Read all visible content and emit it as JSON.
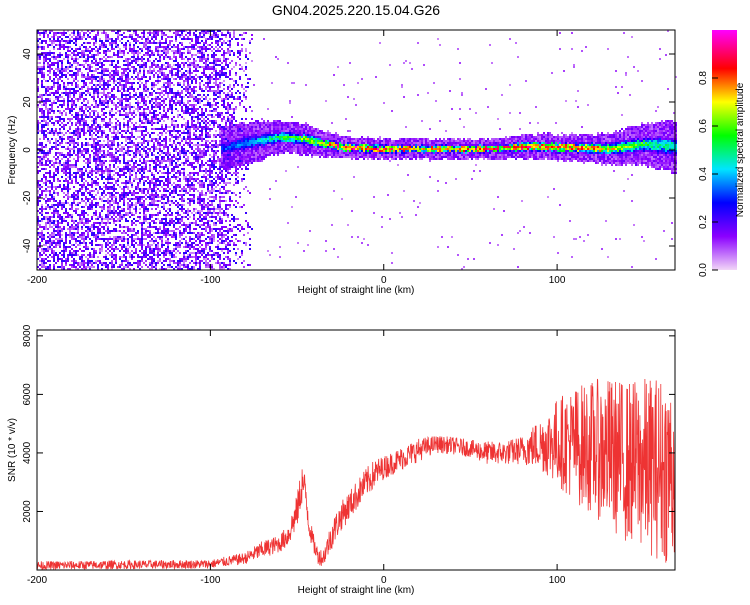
{
  "title": "GN04.2025.220.15.04.G26",
  "chart_data": [
    {
      "type": "heatmap",
      "xlabel": "Height of straight line (km)",
      "ylabel": "Frequency (Hz)",
      "xlim": [
        -200,
        168
      ],
      "ylim": [
        -50,
        50
      ],
      "xticks": [
        -200,
        -100,
        0,
        100
      ],
      "yticks": [
        -40,
        -20,
        0,
        20,
        40
      ],
      "grid": false,
      "colorbar": {
        "label": "Normalized spectral amplitude",
        "range": [
          0,
          1
        ],
        "ticks": [
          "0.0",
          "0.2",
          "0.4",
          "0.6",
          "0.8"
        ],
        "colors": [
          "#f2d6f7",
          "#8b00ff",
          "#0000ff",
          "#00e5ff",
          "#00ff00",
          "#ffff00",
          "#ff0000",
          "#ff00ff"
        ]
      },
      "noise_region": {
        "x_range": [
          -200,
          -75
        ],
        "amplitude": 0.25
      },
      "ridge": [
        {
          "x": -95,
          "freq": 0,
          "width": 4,
          "amplitude": 0.3
        },
        {
          "x": -75,
          "freq": 3,
          "width": 4,
          "amplitude": 0.4
        },
        {
          "x": -60,
          "freq": 5,
          "width": 3,
          "amplitude": 0.55
        },
        {
          "x": -45,
          "freq": 4,
          "width": 3,
          "amplitude": 0.65
        },
        {
          "x": -35,
          "freq": 2,
          "width": 2.5,
          "amplitude": 0.75
        },
        {
          "x": -20,
          "freq": 0.5,
          "width": 2,
          "amplitude": 0.95
        },
        {
          "x": 0,
          "freq": 0,
          "width": 2,
          "amplitude": 0.85
        },
        {
          "x": 20,
          "freq": 0,
          "width": 2,
          "amplitude": 0.8
        },
        {
          "x": 50,
          "freq": 0,
          "width": 2,
          "amplitude": 0.8
        },
        {
          "x": 70,
          "freq": 0.5,
          "width": 2,
          "amplitude": 0.9
        },
        {
          "x": 90,
          "freq": 1,
          "width": 2.5,
          "amplitude": 0.85
        },
        {
          "x": 110,
          "freq": 0.5,
          "width": 2.5,
          "amplitude": 0.85
        },
        {
          "x": 130,
          "freq": 0,
          "width": 3,
          "amplitude": 0.7
        },
        {
          "x": 150,
          "freq": 2,
          "width": 4,
          "amplitude": 0.55
        },
        {
          "x": 168,
          "freq": 1,
          "width": 5,
          "amplitude": 0.45
        }
      ]
    },
    {
      "type": "line",
      "xlabel": "Height of straight line (km)",
      "ylabel": "SNR (10 * v/v)",
      "xlim": [
        -200,
        168
      ],
      "ylim": [
        0,
        8200
      ],
      "xticks": [
        -200,
        -100,
        0,
        100
      ],
      "yticks": [
        2000,
        4000,
        6000,
        8000
      ],
      "grid": false,
      "color": "#ee3333",
      "series": [
        {
          "x": [
            -200,
            -150,
            -100,
            -80,
            -70,
            -60,
            -55,
            -50,
            -47,
            -45,
            -43,
            -40,
            -38,
            -35,
            -30,
            -25,
            -20,
            -15,
            -10,
            -5,
            0,
            10,
            20,
            30,
            40,
            50,
            60,
            70,
            80,
            90,
            100,
            110,
            120,
            130,
            140,
            150,
            160,
            168
          ],
          "values": [
            150,
            180,
            200,
            400,
            700,
            900,
            1200,
            2000,
            3000,
            2600,
            1500,
            800,
            500,
            400,
            1200,
            1800,
            2200,
            2600,
            3000,
            3300,
            3500,
            3800,
            4100,
            4300,
            4250,
            4150,
            4000,
            4000,
            4100,
            4300,
            4400,
            4300,
            4200,
            4000,
            3700,
            3600,
            3500,
            3400
          ],
          "spread": [
            150,
            150,
            150,
            200,
            300,
            300,
            400,
            600,
            700,
            600,
            400,
            300,
            300,
            300,
            500,
            500,
            500,
            500,
            500,
            500,
            400,
            400,
            400,
            300,
            300,
            300,
            400,
            400,
            500,
            900,
            1500,
            2000,
            2300,
            2600,
            2800,
            3000,
            3200,
            3300
          ]
        }
      ]
    }
  ]
}
